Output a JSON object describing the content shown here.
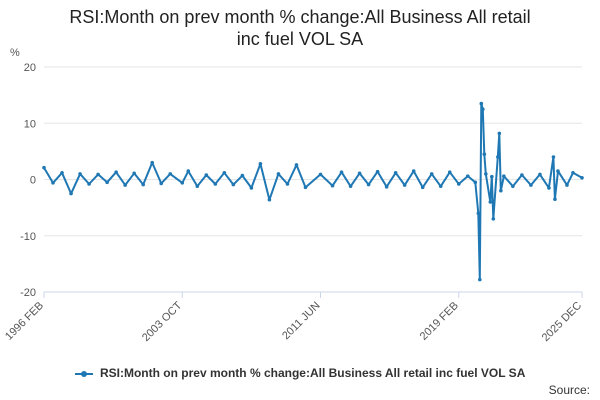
{
  "title_lines": [
    "RSI:Month on prev month % change:All Business All retail",
    "inc fuel VOL SA"
  ],
  "unit": "%",
  "source": "Source:",
  "colors": {
    "series": "#1f78b4",
    "grid": "#e6e6e6",
    "axis": "#ccd6eb"
  },
  "chart_data": {
    "type": "line",
    "title": "RSI:Month on prev month % change:All Business All retail inc fuel VOL SA",
    "ylabel": "%",
    "ylim": [
      -20,
      20
    ],
    "yticks": [
      20,
      10,
      0,
      -10,
      -20
    ],
    "xrange": [
      "1996 FEB",
      "2025 DEC"
    ],
    "xticks": [
      "1996 FEB",
      "2003 OCT",
      "2011 JUN",
      "2019 FEB",
      "2025 DEC"
    ],
    "grid": true,
    "legend": "bottom",
    "series": [
      {
        "name": "RSI:Month on prev month % change:All Business All retail inc fuel VOL SA",
        "points": [
          [
            "1996 FEB",
            2.1
          ],
          [
            "1996 AUG",
            -0.6
          ],
          [
            "1997 FEB",
            1.2
          ],
          [
            "1997 AUG",
            -2.5
          ],
          [
            "1998 FEB",
            1.0
          ],
          [
            "1998 AUG",
            -0.8
          ],
          [
            "1999 FEB",
            0.9
          ],
          [
            "1999 AUG",
            -0.5
          ],
          [
            "2000 FEB",
            1.3
          ],
          [
            "2000 AUG",
            -1.0
          ],
          [
            "2001 FEB",
            1.1
          ],
          [
            "2001 AUG",
            -0.9
          ],
          [
            "2002 FEB",
            3.0
          ],
          [
            "2002 AUG",
            -0.7
          ],
          [
            "2003 FEB",
            1.0
          ],
          [
            "2003 OCT",
            -0.6
          ],
          [
            "2004 FEB",
            1.5
          ],
          [
            "2004 AUG",
            -1.2
          ],
          [
            "2005 FEB",
            0.8
          ],
          [
            "2005 AUG",
            -0.8
          ],
          [
            "2006 FEB",
            1.2
          ],
          [
            "2006 AUG",
            -0.9
          ],
          [
            "2007 FEB",
            0.7
          ],
          [
            "2007 AUG",
            -1.5
          ],
          [
            "2008 FEB",
            2.8
          ],
          [
            "2008 AUG",
            -3.6
          ],
          [
            "2009 FEB",
            1.0
          ],
          [
            "2009 AUG",
            -0.8
          ],
          [
            "2010 FEB",
            2.6
          ],
          [
            "2010 AUG",
            -1.4
          ],
          [
            "2011 JUN",
            0.9
          ],
          [
            "2012 FEB",
            -1.1
          ],
          [
            "2012 AUG",
            1.3
          ],
          [
            "2013 FEB",
            -1.2
          ],
          [
            "2013 AUG",
            1.1
          ],
          [
            "2014 FEB",
            -0.9
          ],
          [
            "2014 AUG",
            1.4
          ],
          [
            "2015 FEB",
            -1.3
          ],
          [
            "2015 AUG",
            1.2
          ],
          [
            "2016 FEB",
            -1.0
          ],
          [
            "2016 AUG",
            1.5
          ],
          [
            "2017 FEB",
            -1.4
          ],
          [
            "2017 AUG",
            1.0
          ],
          [
            "2018 FEB",
            -1.2
          ],
          [
            "2018 AUG",
            1.3
          ],
          [
            "2019 FEB",
            -0.8
          ],
          [
            "2019 AUG",
            0.6
          ],
          [
            "2020 JAN",
            -0.5
          ],
          [
            "2020 MAR",
            -6.0
          ],
          [
            "2020 APR",
            -17.8
          ],
          [
            "2020 MAY",
            13.5
          ],
          [
            "2020 JUN",
            12.5
          ],
          [
            "2020 JUL",
            4.5
          ],
          [
            "2020 AUG",
            1.0
          ],
          [
            "2020 NOV",
            -4.0
          ],
          [
            "2020 DEC",
            0.5
          ],
          [
            "2021 JAN",
            -7.0
          ],
          [
            "2021 APR",
            4.0
          ],
          [
            "2021 MAY",
            8.2
          ],
          [
            "2021 JUN",
            -2.0
          ],
          [
            "2021 AUG",
            0.6
          ],
          [
            "2022 FEB",
            -1.2
          ],
          [
            "2022 AUG",
            0.8
          ],
          [
            "2023 FEB",
            -1.0
          ],
          [
            "2023 AUG",
            0.9
          ],
          [
            "2024 FEB",
            -1.5
          ],
          [
            "2024 MAY",
            4.0
          ],
          [
            "2024 JUN",
            -3.5
          ],
          [
            "2024 AUG",
            1.5
          ],
          [
            "2025 FEB",
            -1.0
          ],
          [
            "2025 JUN",
            1.2
          ],
          [
            "2025 DEC",
            0.3
          ]
        ]
      }
    ]
  }
}
